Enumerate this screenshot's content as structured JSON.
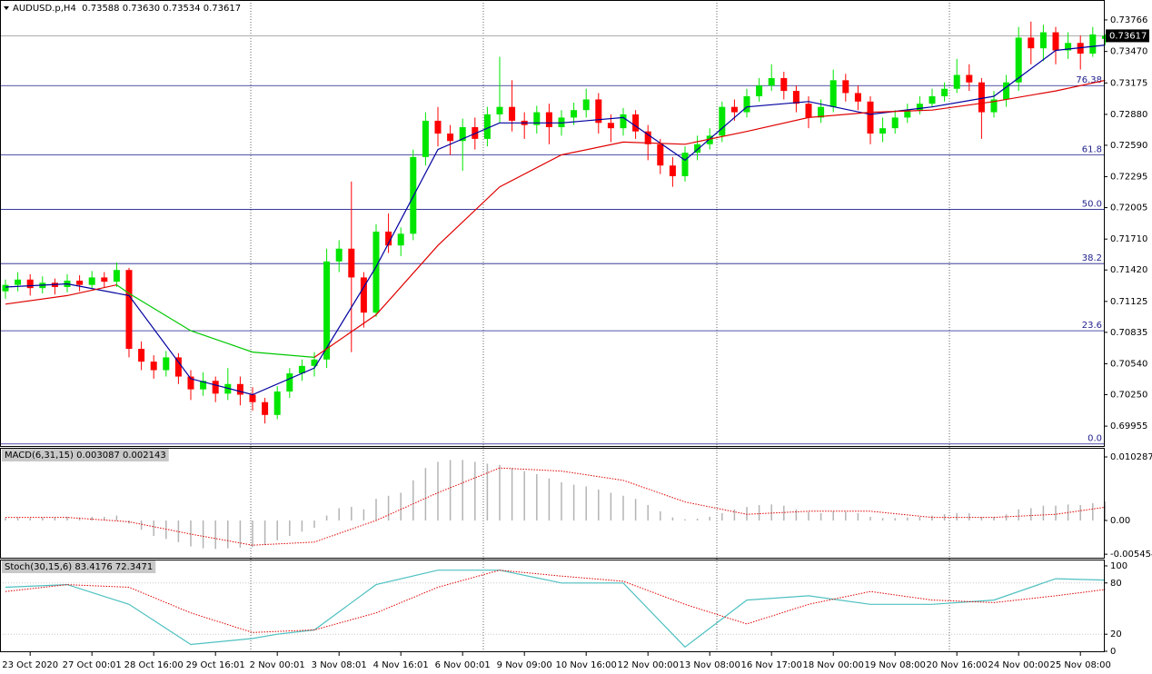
{
  "chart_data": {
    "type": "candlestick",
    "title": "AUDUSD.p,H4  0.73588 0.73630 0.73534 0.73617",
    "categories": [
      null,
      null,
      "23 Oct 2020",
      null,
      null,
      null,
      null,
      "27 Oct 00:01",
      null,
      null,
      null,
      null,
      "28 Oct 16:00",
      null,
      null,
      null,
      null,
      "29 Oct 16:01",
      null,
      null,
      null,
      null,
      "2 Nov 00:01",
      null,
      null,
      null,
      null,
      "3 Nov 08:01",
      null,
      null,
      null,
      null,
      "4 Nov 16:01",
      null,
      null,
      null,
      null,
      "6 Nov 00:01",
      null,
      null,
      null,
      null,
      "9 Nov 09:00",
      null,
      null,
      null,
      null,
      "10 Nov 16:00",
      null,
      null,
      null,
      null,
      "12 Nov 00:00",
      null,
      null,
      null,
      null,
      "13 Nov 08:00",
      null,
      null,
      null,
      null,
      "16 Nov 17:00",
      null,
      null,
      null,
      null,
      "18 Nov 00:00",
      null,
      null,
      null,
      null,
      "19 Nov 08:00",
      null,
      null,
      null,
      null,
      "20 Nov 16:00",
      null,
      null,
      null,
      null,
      "24 Nov 00:00",
      null,
      null,
      null,
      null,
      "25 Nov 08:00",
      null,
      null
    ],
    "open": [
      0.7122,
      0.7128,
      0.7133,
      0.7125,
      0.713,
      0.7126,
      0.7132,
      0.7128,
      0.7135,
      0.7131,
      0.7142,
      0.7068,
      0.7056,
      0.7048,
      0.706,
      0.7042,
      0.703,
      0.7038,
      0.7026,
      0.7035,
      0.7025,
      0.7018,
      0.7006,
      0.7028,
      0.7045,
      0.7052,
      0.7058,
      0.715,
      0.7162,
      0.7135,
      0.7102,
      0.7178,
      0.7165,
      0.7176,
      0.7248,
      0.7282,
      0.727,
      0.7263,
      0.7276,
      0.7265,
      0.7288,
      0.7295,
      0.7282,
      0.7278,
      0.729,
      0.7276,
      0.7285,
      0.7292,
      0.7302,
      0.728,
      0.7275,
      0.7288,
      0.7272,
      0.726,
      0.724,
      0.723,
      0.7252,
      0.726,
      0.7268,
      0.7295,
      0.729,
      0.7305,
      0.7315,
      0.7322,
      0.731,
      0.7298,
      0.7285,
      0.7295,
      0.732,
      0.7308,
      0.73,
      0.727,
      0.7275,
      0.7285,
      0.7292,
      0.7298,
      0.7305,
      0.7312,
      0.7325,
      0.7318,
      0.729,
      0.7302,
      0.7318,
      0.736,
      0.735,
      0.7365,
      0.7348,
      0.7355,
      0.7345,
      0.73588
    ],
    "high": [
      0.7133,
      0.714,
      0.7138,
      0.7136,
      0.7134,
      0.7138,
      0.7137,
      0.7141,
      0.714,
      0.7149,
      0.7144,
      0.7075,
      0.7062,
      0.7066,
      0.7064,
      0.7048,
      0.7046,
      0.7042,
      0.705,
      0.7042,
      0.7032,
      0.7022,
      0.7033,
      0.705,
      0.7058,
      0.7065,
      0.7162,
      0.717,
      0.7225,
      0.714,
      0.7185,
      0.7195,
      0.7182,
      0.7255,
      0.729,
      0.7295,
      0.7278,
      0.7284,
      0.7285,
      0.7295,
      0.7342,
      0.732,
      0.729,
      0.7296,
      0.7298,
      0.7292,
      0.7299,
      0.7312,
      0.7308,
      0.7288,
      0.7294,
      0.7292,
      0.7278,
      0.7265,
      0.7248,
      0.7258,
      0.7268,
      0.7275,
      0.73,
      0.7302,
      0.7312,
      0.7322,
      0.7335,
      0.7328,
      0.7315,
      0.7305,
      0.7302,
      0.733,
      0.7326,
      0.7315,
      0.7305,
      0.7285,
      0.7292,
      0.7298,
      0.7305,
      0.7312,
      0.7318,
      0.734,
      0.7335,
      0.7322,
      0.731,
      0.7325,
      0.737,
      0.7375,
      0.7372,
      0.737,
      0.7365,
      0.7362,
      0.737,
      0.7363
    ],
    "low": [
      0.7115,
      0.7122,
      0.7118,
      0.712,
      0.7119,
      0.7121,
      0.7122,
      0.7124,
      0.7125,
      0.7126,
      0.706,
      0.7048,
      0.704,
      0.7042,
      0.7035,
      0.702,
      0.7024,
      0.7018,
      0.702,
      0.7015,
      0.701,
      0.6998,
      0.7002,
      0.7022,
      0.7038,
      0.7042,
      0.705,
      0.714,
      0.7065,
      0.7088,
      0.7098,
      0.7158,
      0.7155,
      0.717,
      0.724,
      0.7258,
      0.725,
      0.7235,
      0.7255,
      0.7258,
      0.728,
      0.7272,
      0.7265,
      0.727,
      0.726,
      0.7268,
      0.7278,
      0.7285,
      0.727,
      0.7262,
      0.7268,
      0.7265,
      0.7245,
      0.7232,
      0.722,
      0.7225,
      0.7245,
      0.7255,
      0.7262,
      0.7282,
      0.7285,
      0.73,
      0.731,
      0.7302,
      0.729,
      0.7275,
      0.728,
      0.729,
      0.73,
      0.7292,
      0.726,
      0.7262,
      0.727,
      0.728,
      0.7288,
      0.7295,
      0.73,
      0.7308,
      0.731,
      0.7265,
      0.7285,
      0.7295,
      0.731,
      0.7335,
      0.7338,
      0.7335,
      0.734,
      0.733,
      0.7342,
      0.73534
    ],
    "close": [
      0.7128,
      0.7133,
      0.7125,
      0.713,
      0.7126,
      0.7132,
      0.7128,
      0.7135,
      0.7131,
      0.7142,
      0.7068,
      0.7056,
      0.7048,
      0.706,
      0.7042,
      0.703,
      0.7038,
      0.7026,
      0.7035,
      0.7025,
      0.7018,
      0.7006,
      0.7028,
      0.7045,
      0.7052,
      0.7058,
      0.715,
      0.7162,
      0.7135,
      0.7102,
      0.7178,
      0.7165,
      0.7176,
      0.7248,
      0.7282,
      0.727,
      0.7263,
      0.7276,
      0.7265,
      0.7288,
      0.7295,
      0.7282,
      0.7278,
      0.729,
      0.7276,
      0.7285,
      0.7292,
      0.7302,
      0.728,
      0.7275,
      0.7288,
      0.7272,
      0.726,
      0.724,
      0.723,
      0.7252,
      0.726,
      0.7268,
      0.7295,
      0.729,
      0.7305,
      0.7315,
      0.7322,
      0.731,
      0.7298,
      0.7285,
      0.7295,
      0.732,
      0.7308,
      0.73,
      0.727,
      0.7275,
      0.7285,
      0.7292,
      0.7298,
      0.7305,
      0.7312,
      0.7325,
      0.7318,
      0.729,
      0.7302,
      0.7318,
      0.736,
      0.735,
      0.7365,
      0.7348,
      0.7355,
      0.7345,
      0.7363,
      0.73617
    ],
    "up_color": "#00e600",
    "down_color": "#ff0000",
    "ylim": [
      0.6976,
      0.73953
    ],
    "yticks": [
      0.73766,
      {
        "value": 0.7347,
        "label": "0.73470"
      },
      0.73175,
      {
        "value": 0.7288,
        "label": "0.72880"
      },
      {
        "value": 0.7259,
        "label": "0.72590"
      },
      0.72295,
      0.72005,
      {
        "value": 0.7171,
        "label": "0.71710"
      },
      {
        "value": 0.7142,
        "label": "0.71420"
      },
      0.71125,
      0.70835,
      {
        "value": 0.7054,
        "label": "0.70540"
      },
      {
        "value": 0.7025,
        "label": "0.70250"
      },
      0.69955
    ],
    "current_price": 0.73617,
    "fib_color": "#1e1e8c",
    "fib_levels": [
      {
        "value": 0.7315,
        "label": "76.38"
      },
      {
        "value": 0.725,
        "label": "61.8"
      },
      {
        "value": 0.71989,
        "label": "50.0"
      },
      {
        "value": 0.7148,
        "label": "38.2"
      },
      {
        "value": 0.7085,
        "label": "23.6"
      },
      {
        "value": 0.69788,
        "label": "0.0"
      }
    ],
    "lines": [
      {
        "color": "#0000a0",
        "x": [
          0,
          5,
          10,
          15,
          20,
          25,
          30,
          35,
          40,
          45,
          50,
          55,
          60,
          65,
          70,
          75,
          80,
          85,
          89
        ],
        "values": [
          0.7126,
          0.7129,
          0.7118,
          0.704,
          0.7025,
          0.705,
          0.7145,
          0.7255,
          0.728,
          0.728,
          0.7285,
          0.7245,
          0.7295,
          0.73,
          0.7288,
          0.7295,
          0.7305,
          0.7348,
          0.7353
        ]
      },
      {
        "color": "#e00000",
        "x": [
          0,
          5,
          9
        ],
        "values": [
          0.711,
          0.7118,
          0.7128
        ]
      },
      {
        "color": "#00c800",
        "x": [
          9,
          10,
          15,
          20,
          25
        ],
        "values": [
          0.7128,
          0.712,
          0.7085,
          0.7065,
          0.706
        ]
      },
      {
        "color": "#e00000",
        "x": [
          25,
          30,
          35,
          40,
          45,
          50,
          55,
          60,
          65,
          70,
          75,
          80,
          85,
          89
        ],
        "values": [
          0.706,
          0.71,
          0.7165,
          0.722,
          0.725,
          0.7262,
          0.726,
          0.7272,
          0.7285,
          0.729,
          0.7292,
          0.73,
          0.731,
          0.732
        ]
      }
    ],
    "macd": {
      "type": "macd",
      "title": "MACD(6,31,15) 0.003087 0.002143",
      "values": [
        0.0004,
        0.0005,
        0.0004,
        0.0005,
        0.0005,
        0.0006,
        0.0005,
        0.0006,
        0.0006,
        0.0008,
        -0.0005,
        -0.0015,
        -0.0025,
        -0.003,
        -0.0035,
        -0.0042,
        -0.0045,
        -0.0046,
        -0.0045,
        -0.0044,
        -0.0043,
        -0.004,
        -0.0032,
        -0.0025,
        -0.0018,
        -0.0012,
        0.0008,
        0.002,
        0.0022,
        0.0018,
        0.0035,
        0.004,
        0.0045,
        0.0065,
        0.0085,
        0.0095,
        0.0098,
        0.0098,
        0.0095,
        0.0092,
        0.009,
        0.0085,
        0.008,
        0.0075,
        0.0068,
        0.0062,
        0.0058,
        0.0055,
        0.005,
        0.0045,
        0.004,
        0.0035,
        0.0025,
        0.0015,
        0.0005,
        0.0002,
        0.0003,
        0.0006,
        0.0012,
        0.0018,
        0.0022,
        0.0025,
        0.0026,
        0.0024,
        0.0018,
        0.0014,
        0.0012,
        0.0015,
        0.0014,
        0.0012,
        0.0006,
        0.0004,
        0.0004,
        0.0005,
        0.0006,
        0.0008,
        0.001,
        0.0012,
        0.0012,
        0.0006,
        0.0006,
        0.001,
        0.0018,
        0.002,
        0.0024,
        0.0024,
        0.0026,
        0.0025,
        0.0028,
        0.003087
      ],
      "color": "#b4b4b4",
      "signal": {
        "color": "#e00000",
        "x": [
          0,
          5,
          10,
          15,
          20,
          25,
          30,
          35,
          40,
          45,
          50,
          55,
          60,
          65,
          70,
          75,
          80,
          85,
          89
        ],
        "values": [
          0.0005,
          0.0005,
          -0.0002,
          -0.0022,
          -0.004,
          -0.0035,
          0,
          0.0045,
          0.0085,
          0.008,
          0.0065,
          0.003,
          0.001,
          0.0015,
          0.0015,
          0.0005,
          0.0005,
          0.001,
          0.002143
        ]
      },
      "ylim": [
        -0.00617,
        0.01176
      ],
      "yticks": [
        0.010287,
        {
          "value": 0,
          "label": "0.00"
        },
        -0.005454
      ]
    },
    "stoch": {
      "type": "stochastic",
      "title": "Stoch(30,15,6) 83.4176 72.3471",
      "main": {
        "color": "#4fc0c0",
        "x": [
          0,
          5,
          10,
          15,
          20,
          22,
          25,
          30,
          35,
          40,
          45,
          50,
          55,
          60,
          65,
          70,
          75,
          80,
          85,
          89
        ],
        "values": [
          75,
          78,
          55,
          8,
          15,
          20,
          25,
          78,
          95,
          95,
          80,
          80,
          5,
          60,
          65,
          55,
          55,
          60,
          85,
          83.4176
        ]
      },
      "signal": {
        "color": "#e00000",
        "x": [
          0,
          5,
          10,
          15,
          20,
          25,
          30,
          35,
          40,
          45,
          50,
          55,
          60,
          65,
          70,
          75,
          80,
          85,
          89
        ],
        "values": [
          70,
          78,
          75,
          45,
          22,
          25,
          45,
          75,
          95,
          88,
          82,
          55,
          32,
          55,
          70,
          60,
          57,
          65,
          72.3471
        ]
      },
      "levels": [
        80,
        20
      ],
      "ylim": [
        -1.06,
        107.4
      ],
      "yticks": [
        100,
        80,
        20,
        0
      ]
    }
  }
}
